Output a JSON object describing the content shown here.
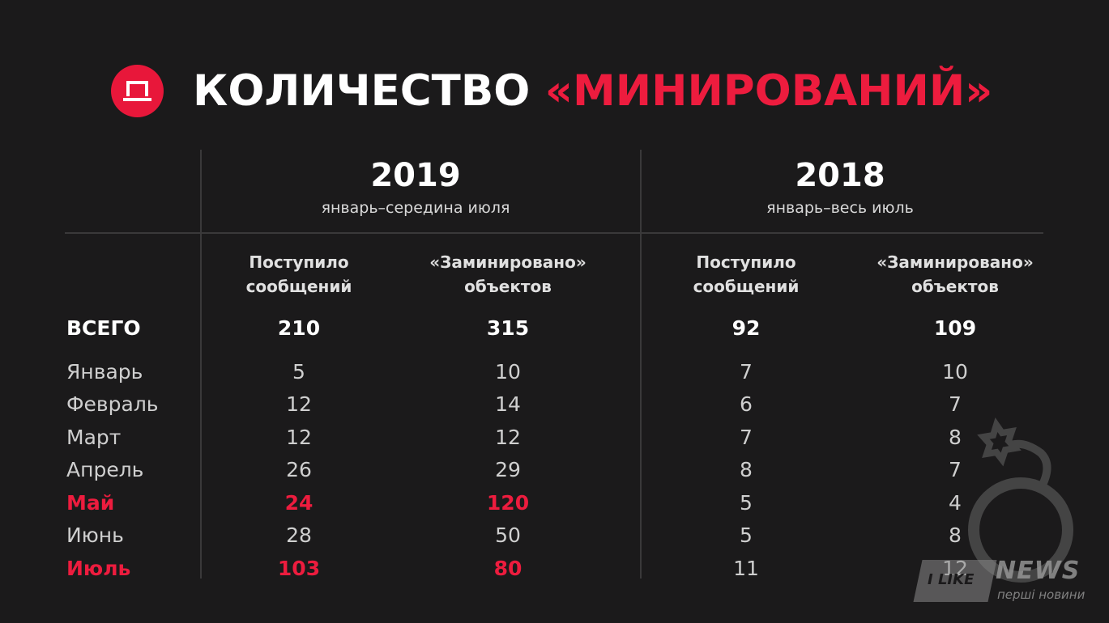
{
  "header": {
    "title_main": "КОЛИЧЕСТВО",
    "title_accent": "«МИНИРОВАНИЙ»",
    "logo_icon": "p-letter-logo-icon",
    "accent_color": "#ed1c3e"
  },
  "columns": {
    "y2019": {
      "year": "2019",
      "period": "январь–середина июля",
      "col1": [
        "Поступило",
        "сообщений"
      ],
      "col2": [
        "«Заминировано»",
        "объектов"
      ]
    },
    "y2018": {
      "year": "2018",
      "period": "январь–весь июль",
      "col1": [
        "Поступило",
        "сообщений"
      ],
      "col2": [
        "«Заминировано»",
        "объектов"
      ]
    }
  },
  "rows": [
    {
      "label": "ВСЕГО",
      "v": [
        "210",
        "315",
        "92",
        "109"
      ]
    },
    {
      "label": "Январь",
      "v": [
        "5",
        "10",
        "7",
        "10"
      ]
    },
    {
      "label": "Февраль",
      "v": [
        "12",
        "14",
        "6",
        "7"
      ]
    },
    {
      "label": "Март",
      "v": [
        "12",
        "12",
        "7",
        "8"
      ]
    },
    {
      "label": "Апрель",
      "v": [
        "26",
        "29",
        "8",
        "7"
      ]
    },
    {
      "label": "Май",
      "v": [
        "24",
        "120",
        "5",
        "4"
      ]
    },
    {
      "label": "Июнь",
      "v": [
        "28",
        "50",
        "5",
        "8"
      ]
    },
    {
      "label": "Июль",
      "v": [
        "103",
        "80",
        "11",
        "12"
      ]
    }
  ],
  "watermark": {
    "brand_left": "I LIKE",
    "brand_right": "NEWS",
    "tagline": "перші новини"
  },
  "decor": {
    "bomb_icon": "bomb-icon"
  }
}
